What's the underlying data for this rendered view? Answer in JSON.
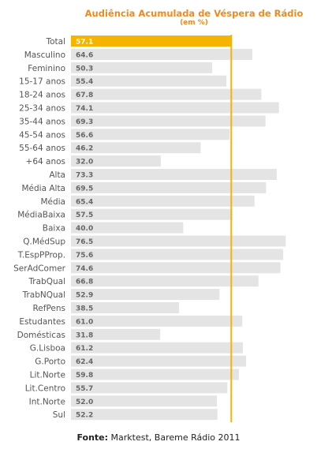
{
  "title": "Audiência Acumulada de Véspera de Rádio",
  "subtitle": "(em %)",
  "source_label": "Fonte:",
  "source_text": "Marktest, Bareme Rádio 2011",
  "colors": {
    "highlight": "#f5b400",
    "bar": "#e4e4e4",
    "title": "#f08a1c",
    "reference_line": "#f5b400"
  },
  "chart_data": {
    "type": "bar",
    "orientation": "horizontal",
    "categories": [
      "Total",
      "Masculino",
      "Feminino",
      "15-17 anos",
      "18-24 anos",
      "25-34 anos",
      "35-44 anos",
      "45-54 anos",
      "55-64 anos",
      "+64 anos",
      "Alta",
      "Média Alta",
      "Média",
      "MédiaBaixa",
      "Baixa",
      "Q.MédSup",
      "T.EspPProp.",
      "SerAdComer",
      "TrabQual",
      "TrabNQual",
      "RefPens",
      "Estudantes",
      "Domésticas",
      "G.Lisboa",
      "G.Porto",
      "Lit.Norte",
      "Lit.Centro",
      "Int.Norte",
      "Sul"
    ],
    "values": [
      57.1,
      64.6,
      50.3,
      55.4,
      67.8,
      74.1,
      69.3,
      56.6,
      46.2,
      32.0,
      73.3,
      69.5,
      65.4,
      57.5,
      40.0,
      76.5,
      75.6,
      74.6,
      66.8,
      52.9,
      38.5,
      61.0,
      31.8,
      61.2,
      62.4,
      59.8,
      55.7,
      52.0,
      52.2
    ],
    "value_labels": [
      "57.1",
      "64.6",
      "50.3",
      "55.4",
      "67.8",
      "74.1",
      "69.3",
      "56.6",
      "46.2",
      "32.0",
      "73.3",
      "69.5",
      "65.4",
      "57.5",
      "40.0",
      "76.5",
      "75.6",
      "74.6",
      "66.8",
      "52.9",
      "38.5",
      "61.0",
      "31.8",
      "61.2",
      "62.4",
      "59.8",
      "55.7",
      "52.0",
      "52.2"
    ],
    "highlight_category": "Total",
    "reference_value": 57.1,
    "xlim": [
      0,
      80
    ],
    "grid": false,
    "legend": "none"
  }
}
